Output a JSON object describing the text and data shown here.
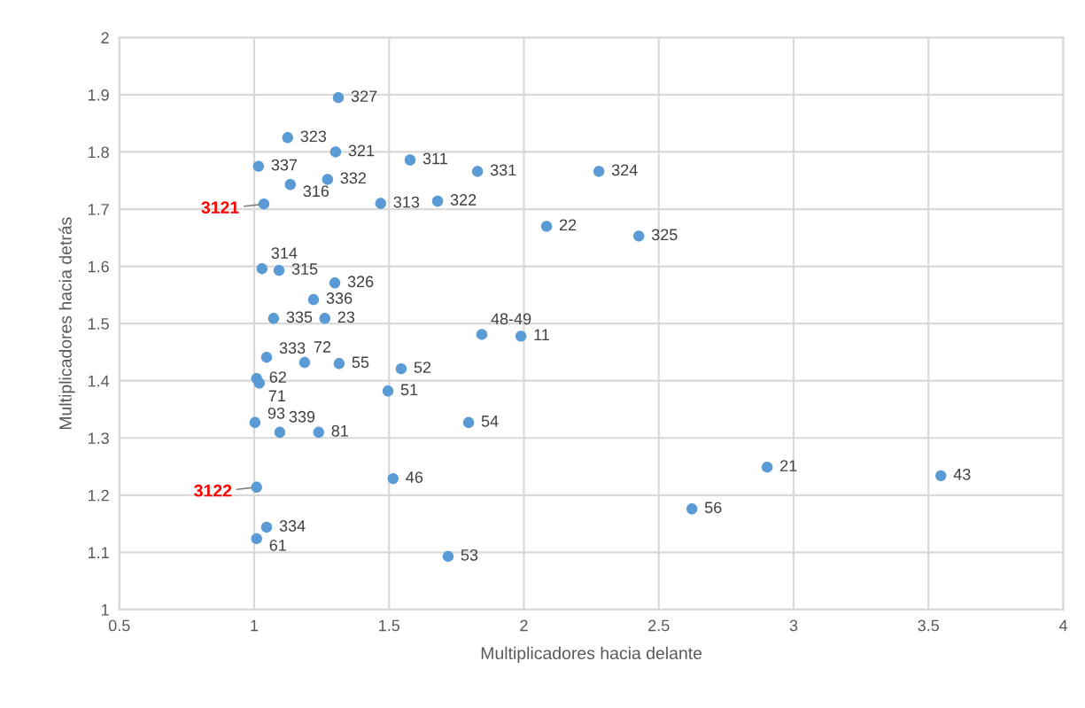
{
  "chart_data": {
    "type": "scatter",
    "xlabel": "Multiplicadores hacia delante",
    "ylabel": "Multiplicadores hacia detrás",
    "xlim": [
      0.5,
      4
    ],
    "xticks": [
      0.5,
      1,
      1.5,
      2,
      2.5,
      3,
      3.5,
      4
    ],
    "ylim": [
      1,
      2
    ],
    "yticks": [
      1,
      1.1,
      1.2,
      1.3,
      1.4,
      1.5,
      1.6,
      1.7,
      1.8,
      1.9,
      2
    ],
    "grid": true,
    "marker": "circle",
    "series": [
      {
        "color": "#5b9bd5",
        "x": [
          1.312,
          1.124,
          1.302,
          1.016,
          1.578,
          1.828,
          2.278,
          1.272,
          1.134,
          1.469,
          1.68,
          2.084,
          2.426,
          1.029,
          1.092,
          1.299,
          1.22,
          1.072,
          1.262,
          1.844,
          1.989,
          1.046,
          1.187,
          1.315,
          1.545,
          1.009,
          1.019,
          1.496,
          1.003,
          1.795,
          1.095,
          1.239,
          2.902,
          3.546,
          1.515,
          2.623,
          1.046,
          1.009,
          1.719
        ],
        "values": [
          1.895,
          1.825,
          1.8,
          1.775,
          1.786,
          1.766,
          1.766,
          1.752,
          1.743,
          1.71,
          1.714,
          1.67,
          1.653,
          1.596,
          1.593,
          1.571,
          1.542,
          1.509,
          1.509,
          1.481,
          1.478,
          1.441,
          1.432,
          1.43,
          1.421,
          1.404,
          1.396,
          1.382,
          1.327,
          1.327,
          1.31,
          1.31,
          1.249,
          1.234,
          1.229,
          1.176,
          1.144,
          1.124,
          1.093
        ]
      },
      {
        "color": "#5b9bd5",
        "x": [
          1.036,
          1.009
        ],
        "values": [
          1.709,
          1.214
        ]
      }
    ],
    "annotations": [
      {
        "text": "327",
        "x": 1.312,
        "y": 1.895
      },
      {
        "text": "323",
        "x": 1.124,
        "y": 1.825
      },
      {
        "text": "321",
        "x": 1.302,
        "y": 1.8
      },
      {
        "text": "337",
        "x": 1.016,
        "y": 1.775
      },
      {
        "text": "311",
        "x": 1.578,
        "y": 1.786
      },
      {
        "text": "331",
        "x": 1.828,
        "y": 1.766
      },
      {
        "text": "324",
        "x": 2.278,
        "y": 1.766
      },
      {
        "text": "332",
        "x": 1.272,
        "y": 1.752
      },
      {
        "text": "316",
        "x": 1.134,
        "y": 1.743
      },
      {
        "text": "3121",
        "x": 1.036,
        "y": 1.709
      },
      {
        "text": "313",
        "x": 1.469,
        "y": 1.71
      },
      {
        "text": "322",
        "x": 1.68,
        "y": 1.714
      },
      {
        "text": "22",
        "x": 2.084,
        "y": 1.67
      },
      {
        "text": "325",
        "x": 2.426,
        "y": 1.653
      },
      {
        "text": "314",
        "x": 1.029,
        "y": 1.596
      },
      {
        "text": "315",
        "x": 1.092,
        "y": 1.593
      },
      {
        "text": "326",
        "x": 1.299,
        "y": 1.571
      },
      {
        "text": "336",
        "x": 1.22,
        "y": 1.542
      },
      {
        "text": "335",
        "x": 1.072,
        "y": 1.509
      },
      {
        "text": "23",
        "x": 1.262,
        "y": 1.509
      },
      {
        "text": "48-49",
        "x": 1.844,
        "y": 1.481
      },
      {
        "text": "11",
        "x": 1.989,
        "y": 1.478
      },
      {
        "text": "333",
        "x": 1.046,
        "y": 1.441
      },
      {
        "text": "72",
        "x": 1.187,
        "y": 1.432
      },
      {
        "text": "55",
        "x": 1.315,
        "y": 1.43
      },
      {
        "text": "52",
        "x": 1.545,
        "y": 1.421
      },
      {
        "text": "62",
        "x": 1.009,
        "y": 1.404
      },
      {
        "text": "71",
        "x": 1.019,
        "y": 1.396
      },
      {
        "text": "51",
        "x": 1.496,
        "y": 1.382
      },
      {
        "text": "93",
        "x": 1.003,
        "y": 1.327
      },
      {
        "text": "54",
        "x": 1.795,
        "y": 1.327
      },
      {
        "text": "339",
        "x": 1.095,
        "y": 1.31
      },
      {
        "text": "81",
        "x": 1.239,
        "y": 1.31
      },
      {
        "text": "21",
        "x": 2.902,
        "y": 1.249
      },
      {
        "text": "43",
        "x": 3.546,
        "y": 1.234
      },
      {
        "text": "46",
        "x": 1.515,
        "y": 1.229
      },
      {
        "text": "3122",
        "x": 1.009,
        "y": 1.214
      },
      {
        "text": "56",
        "x": 2.623,
        "y": 1.176
      },
      {
        "text": "334",
        "x": 1.046,
        "y": 1.144
      },
      {
        "text": "61",
        "x": 1.009,
        "y": 1.124
      },
      {
        "text": "53",
        "x": 1.719,
        "y": 1.093
      }
    ]
  }
}
